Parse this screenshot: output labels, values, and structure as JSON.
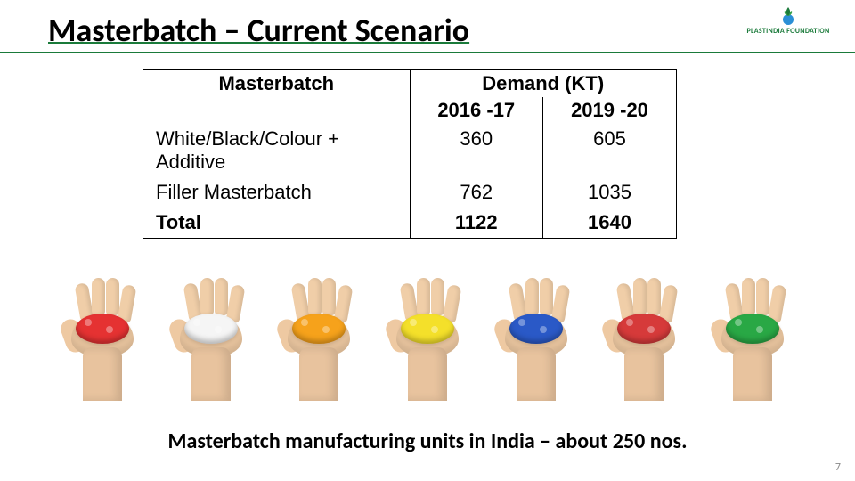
{
  "title": "Masterbatch – Current Scenario",
  "logo": {
    "name": "PLASTINDIA FOUNDATION",
    "icon_color": "#1a7a3a"
  },
  "table": {
    "cat_header": "Masterbatch",
    "demand_header": "Demand (KT)",
    "year1": "2016 -17",
    "year2": "2019 -20",
    "rows": [
      {
        "label": "White/Black/Colour + Additive",
        "y1": "360",
        "y2": "605"
      },
      {
        "label": "Filler Masterbatch",
        "y1": "762",
        "y2": "1035"
      },
      {
        "label": "Total",
        "y1": "1122",
        "y2": "1640"
      }
    ],
    "border_color": "#000000",
    "font_size": 22
  },
  "hands": {
    "colors": [
      "#e53232",
      "#f5f5f5",
      "#f6a21b",
      "#f4e02a",
      "#2a59c7",
      "#d63a3a",
      "#29a845"
    ],
    "names": [
      "red-pellets",
      "white-pellets",
      "orange-pellets",
      "yellow-pellets",
      "blue-pellets",
      "red2-pellets",
      "green-pellets"
    ],
    "skin": "#eec9a2"
  },
  "footer_note": "Masterbatch  manufacturing units in India – about 250 nos.",
  "page_number": "7",
  "colors": {
    "accent": "#1a7a3a",
    "text": "#000000",
    "bg": "#ffffff"
  }
}
